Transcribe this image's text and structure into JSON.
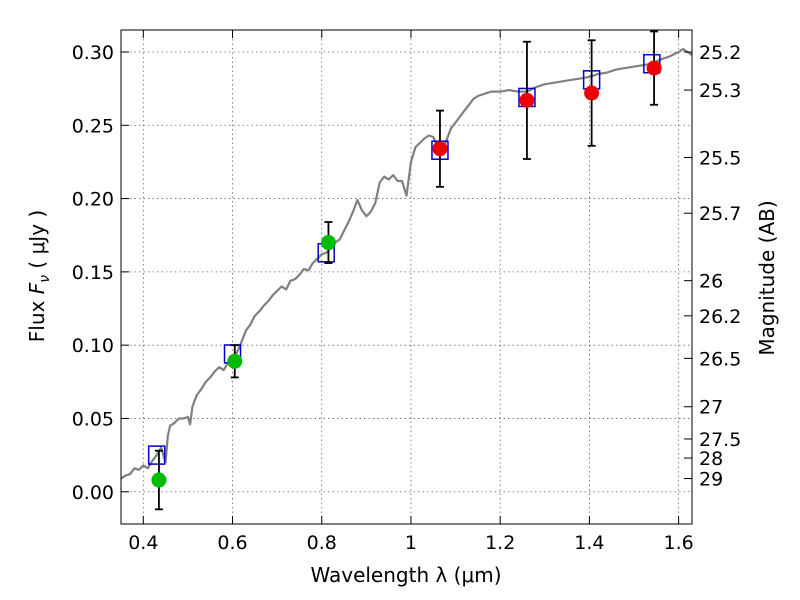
{
  "chart_data": {
    "type": "scatter",
    "xlabel": "Wavelength  λ (μm)",
    "ylabel_prefix": "Flux  ",
    "ylabel_symbol": "F",
    "ylabel_sub": "ν",
    "ylabel_suffix": " ( μJy )",
    "ylabel_right": "Magnitude (AB)",
    "xlim": [
      0.35,
      1.63
    ],
    "ylim": [
      -0.022,
      0.315
    ],
    "x_ticks": [
      0.4,
      0.6,
      0.8,
      1.0,
      1.2,
      1.4,
      1.6
    ],
    "x_tick_labels": [
      "0.4",
      "0.6",
      "0.8",
      "1",
      "1.2",
      "1.4",
      "1.6"
    ],
    "y_ticks": [
      0.0,
      0.05,
      0.1,
      0.15,
      0.2,
      0.25,
      0.3
    ],
    "y_tick_labels": [
      "0.00",
      "0.05",
      "0.10",
      "0.15",
      "0.20",
      "0.25",
      "0.30"
    ],
    "mag_ticks": [
      {
        "label": "25.2",
        "flux": 0.3
      },
      {
        "label": "25.3",
        "flux": 0.274
      },
      {
        "label": "25.5",
        "flux": 0.228
      },
      {
        "label": "25.7",
        "flux": 0.19
      },
      {
        "label": "26",
        "flux": 0.144
      },
      {
        "label": "26.2",
        "flux": 0.12
      },
      {
        "label": "26.5",
        "flux": 0.091
      },
      {
        "label": "27",
        "flux": 0.058
      },
      {
        "label": "27.5",
        "flux": 0.036
      },
      {
        "label": "28",
        "flux": 0.023
      },
      {
        "label": "29",
        "flux": 0.009
      }
    ],
    "grid": true,
    "colors": {
      "model": "#808080",
      "model_points": "#0000cc",
      "green": "#00bb00",
      "red": "#ee0000",
      "errorbar": "#000000"
    },
    "series": [
      {
        "name": "model spectrum",
        "kind": "line",
        "points": [
          [
            0.35,
            0.009
          ],
          [
            0.36,
            0.011
          ],
          [
            0.37,
            0.012
          ],
          [
            0.38,
            0.016
          ],
          [
            0.39,
            0.015
          ],
          [
            0.4,
            0.018
          ],
          [
            0.41,
            0.016
          ],
          [
            0.42,
            0.021
          ],
          [
            0.43,
            0.025
          ],
          [
            0.44,
            0.03
          ],
          [
            0.45,
            0.02
          ],
          [
            0.455,
            0.038
          ],
          [
            0.46,
            0.045
          ],
          [
            0.47,
            0.047
          ],
          [
            0.48,
            0.05
          ],
          [
            0.49,
            0.05
          ],
          [
            0.5,
            0.051
          ],
          [
            0.505,
            0.046
          ],
          [
            0.51,
            0.058
          ],
          [
            0.52,
            0.066
          ],
          [
            0.53,
            0.07
          ],
          [
            0.54,
            0.075
          ],
          [
            0.55,
            0.078
          ],
          [
            0.56,
            0.082
          ],
          [
            0.57,
            0.085
          ],
          [
            0.58,
            0.083
          ],
          [
            0.59,
            0.088
          ],
          [
            0.6,
            0.092
          ],
          [
            0.61,
            0.095
          ],
          [
            0.62,
            0.102
          ],
          [
            0.63,
            0.11
          ],
          [
            0.64,
            0.114
          ],
          [
            0.65,
            0.12
          ],
          [
            0.66,
            0.123
          ],
          [
            0.67,
            0.127
          ],
          [
            0.68,
            0.13
          ],
          [
            0.69,
            0.134
          ],
          [
            0.7,
            0.137
          ],
          [
            0.71,
            0.14
          ],
          [
            0.72,
            0.138
          ],
          [
            0.73,
            0.144
          ],
          [
            0.74,
            0.145
          ],
          [
            0.75,
            0.148
          ],
          [
            0.76,
            0.152
          ],
          [
            0.77,
            0.151
          ],
          [
            0.78,
            0.156
          ],
          [
            0.79,
            0.159
          ],
          [
            0.8,
            0.162
          ],
          [
            0.81,
            0.163
          ],
          [
            0.82,
            0.166
          ],
          [
            0.83,
            0.17
          ],
          [
            0.84,
            0.172
          ],
          [
            0.85,
            0.178
          ],
          [
            0.86,
            0.184
          ],
          [
            0.87,
            0.191
          ],
          [
            0.88,
            0.199
          ],
          [
            0.89,
            0.192
          ],
          [
            0.9,
            0.188
          ],
          [
            0.91,
            0.191
          ],
          [
            0.92,
            0.197
          ],
          [
            0.93,
            0.211
          ],
          [
            0.94,
            0.215
          ],
          [
            0.95,
            0.213
          ],
          [
            0.96,
            0.216
          ],
          [
            0.97,
            0.212
          ],
          [
            0.98,
            0.212
          ],
          [
            0.99,
            0.202
          ],
          [
            1.0,
            0.225
          ],
          [
            1.01,
            0.235
          ],
          [
            1.02,
            0.238
          ],
          [
            1.03,
            0.241
          ],
          [
            1.04,
            0.243
          ],
          [
            1.05,
            0.242
          ],
          [
            1.06,
            0.235
          ],
          [
            1.07,
            0.232
          ],
          [
            1.08,
            0.24
          ],
          [
            1.09,
            0.248
          ],
          [
            1.1,
            0.252
          ],
          [
            1.11,
            0.256
          ],
          [
            1.12,
            0.26
          ],
          [
            1.13,
            0.264
          ],
          [
            1.14,
            0.268
          ],
          [
            1.15,
            0.27
          ],
          [
            1.16,
            0.271
          ],
          [
            1.18,
            0.273
          ],
          [
            1.2,
            0.273
          ],
          [
            1.22,
            0.274
          ],
          [
            1.24,
            0.273
          ],
          [
            1.26,
            0.273
          ],
          [
            1.28,
            0.276
          ],
          [
            1.3,
            0.278
          ],
          [
            1.32,
            0.279
          ],
          [
            1.34,
            0.28
          ],
          [
            1.36,
            0.281
          ],
          [
            1.38,
            0.282
          ],
          [
            1.4,
            0.283
          ],
          [
            1.42,
            0.285
          ],
          [
            1.44,
            0.286
          ],
          [
            1.46,
            0.288
          ],
          [
            1.48,
            0.289
          ],
          [
            1.5,
            0.29
          ],
          [
            1.52,
            0.291
          ],
          [
            1.54,
            0.292
          ],
          [
            1.56,
            0.295
          ],
          [
            1.58,
            0.297
          ],
          [
            1.6,
            0.3
          ],
          [
            1.61,
            0.302
          ],
          [
            1.62,
            0.3
          ],
          [
            1.63,
            0.298
          ]
        ]
      },
      {
        "name": "model photometry",
        "kind": "open-square",
        "x": [
          0.43,
          0.6,
          0.81,
          1.065,
          1.26,
          1.405,
          1.54
        ],
        "y": [
          0.025,
          0.094,
          0.163,
          0.233,
          0.269,
          0.281,
          0.292
        ]
      },
      {
        "name": "observed (green)",
        "kind": "filled-circle",
        "x": [
          0.435,
          0.605,
          0.815
        ],
        "y": [
          0.008,
          0.089,
          0.17
        ],
        "err": [
          0.02,
          0.011,
          0.014
        ]
      },
      {
        "name": "observed (red)",
        "kind": "filled-circle",
        "x": [
          1.065,
          1.26,
          1.405,
          1.545
        ],
        "y": [
          0.234,
          0.267,
          0.272,
          0.289
        ],
        "err": [
          0.026,
          0.04,
          0.036,
          0.025
        ]
      }
    ]
  }
}
